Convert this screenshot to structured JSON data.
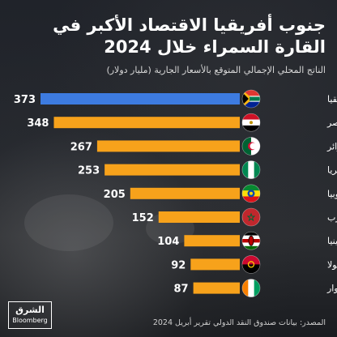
{
  "header": {
    "title": "جنوب أفريقيا الاقتصاد الأكبر في القارة السمراء خلال 2024",
    "subtitle": "الناتج المحلي الإجمالي المتوقع بالأسعار الجارية (مليار دولار)"
  },
  "footer": {
    "source": "المصدر: بيانات صندوق النقد الدولي تقرير أبريل 2024",
    "logo_main": "الشرق",
    "logo_sub": "Bloomberg"
  },
  "colors": {
    "highlight": "#3d7be0",
    "bar": "#f7a21b",
    "text": "#ffffff"
  },
  "chart_data": {
    "type": "bar",
    "orientation": "horizontal",
    "title": "جنوب أفريقيا الاقتصاد الأكبر في القارة السمراء خلال 2024",
    "subtitle": "الناتج المحلي الإجمالي المتوقع بالأسعار الجارية (مليار دولار)",
    "categories": [
      "جنوب أفريقيا",
      "مصر",
      "الجزائر",
      "نيجيريا",
      "أثيوبيا",
      "المغرب",
      "كينيا",
      "أنغولا",
      "كوت ديفوار"
    ],
    "values": [
      373,
      348,
      267,
      253,
      205,
      152,
      104,
      92,
      87
    ],
    "flags": [
      "south-africa-flag",
      "egypt-flag",
      "algeria-flag",
      "nigeria-flag",
      "ethiopia-flag",
      "morocco-flag",
      "kenya-flag",
      "angola-flag",
      "ivory-coast-flag"
    ],
    "highlight_index": 0,
    "xlim": [
      0,
      373
    ],
    "grid": false,
    "legend": "none"
  }
}
